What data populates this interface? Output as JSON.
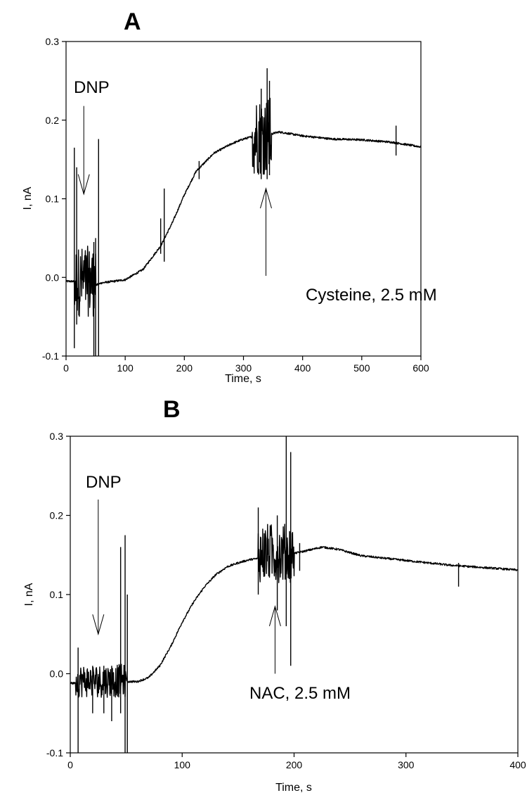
{
  "chart_data": [
    {
      "type": "line",
      "panel": "A",
      "xlabel": "Time, s",
      "ylabel": "I, nA",
      "xlim": [
        0,
        600
      ],
      "ylim": [
        -0.1,
        0.3
      ],
      "xticks": [
        0,
        100,
        200,
        300,
        400,
        500,
        600
      ],
      "yticks": [
        -0.1,
        0.0,
        0.1,
        0.2,
        0.3
      ],
      "grid": false,
      "series": [
        {
          "x": [
            0,
            14,
            50,
            60,
            100,
            130,
            160,
            180,
            200,
            220,
            250,
            280,
            300,
            320,
            345,
            360,
            400,
            450,
            500,
            550,
            600
          ],
          "y": [
            -0.005,
            -0.005,
            -0.01,
            -0.007,
            -0.003,
            0.01,
            0.04,
            0.07,
            0.105,
            0.135,
            0.158,
            0.17,
            0.176,
            0.18,
            0.182,
            0.185,
            0.18,
            0.176,
            0.175,
            0.172,
            0.166
          ]
        }
      ],
      "noise_segments": [
        {
          "x": [
            14,
            50
          ],
          "low": -0.05,
          "high": 0.04
        },
        {
          "x": [
            315,
            347
          ],
          "low": 0.13,
          "high": 0.23
        }
      ],
      "spikes": [
        {
          "x": 14,
          "low": -0.09,
          "high": 0.165
        },
        {
          "x": 18,
          "low": -0.06,
          "high": 0.14
        },
        {
          "x": 47,
          "low": -0.1,
          "high": 0.045
        },
        {
          "x": 50,
          "low": -0.1,
          "high": 0.05
        },
        {
          "x": 55,
          "low": -0.1,
          "high": 0.176
        },
        {
          "x": 160,
          "low": 0.03,
          "high": 0.075
        },
        {
          "x": 166,
          "low": 0.02,
          "high": 0.113
        },
        {
          "x": 225,
          "low": 0.125,
          "high": 0.148
        },
        {
          "x": 330,
          "low": 0.125,
          "high": 0.24
        },
        {
          "x": 340,
          "low": 0.125,
          "high": 0.266
        },
        {
          "x": 344,
          "low": 0.13,
          "high": 0.25
        },
        {
          "x": 558,
          "low": 0.155,
          "high": 0.193
        }
      ],
      "annotations": [
        {
          "text": "DNP",
          "x": 12,
          "y": 0.235,
          "arrow_from": [
            30,
            0.218
          ],
          "arrow_to": [
            30,
            0.106
          ]
        },
        {
          "text": "Cysteine, 2.5 mM",
          "x": 315,
          "y": -0.022,
          "arrow_from": [
            338,
            0.002
          ],
          "arrow_to": [
            338,
            0.113
          ]
        }
      ]
    },
    {
      "type": "line",
      "panel": "B",
      "xlabel": "Time, s",
      "ylabel": "I, nA",
      "xlim": [
        0,
        400
      ],
      "ylim": [
        -0.1,
        0.3
      ],
      "xticks": [
        0,
        100,
        200,
        300,
        400
      ],
      "yticks": [
        -0.1,
        0.0,
        0.1,
        0.2,
        0.3
      ],
      "grid": false,
      "series": [
        {
          "x": [
            0,
            5,
            50,
            60,
            70,
            80,
            90,
            100,
            110,
            120,
            130,
            140,
            150,
            160,
            170,
            180,
            200,
            210,
            225,
            240,
            260,
            280,
            300,
            320,
            340,
            360,
            380,
            400
          ],
          "y": [
            -0.012,
            -0.012,
            -0.01,
            -0.01,
            -0.005,
            0.01,
            0.035,
            0.065,
            0.09,
            0.11,
            0.125,
            0.135,
            0.14,
            0.144,
            0.146,
            0.148,
            0.152,
            0.155,
            0.16,
            0.157,
            0.149,
            0.146,
            0.143,
            0.14,
            0.137,
            0.135,
            0.133,
            0.131
          ]
        }
      ],
      "noise_segments": [
        {
          "x": [
            5,
            50
          ],
          "low": -0.03,
          "high": 0.012
        },
        {
          "x": [
            168,
            200
          ],
          "low": 0.115,
          "high": 0.19
        }
      ],
      "spikes": [
        {
          "x": 7,
          "low": -0.1,
          "high": 0.033
        },
        {
          "x": 20,
          "low": -0.05,
          "high": 0.01
        },
        {
          "x": 30,
          "low": -0.05,
          "high": 0.01
        },
        {
          "x": 37,
          "low": -0.06,
          "high": 0.01
        },
        {
          "x": 45,
          "low": -0.05,
          "high": 0.16
        },
        {
          "x": 49,
          "low": -0.1,
          "high": 0.175
        },
        {
          "x": 51,
          "low": -0.1,
          "high": 0.1
        },
        {
          "x": 168,
          "low": 0.1,
          "high": 0.21
        },
        {
          "x": 185,
          "low": 0.08,
          "high": 0.2
        },
        {
          "x": 193,
          "low": 0.06,
          "high": 0.3
        },
        {
          "x": 197,
          "low": 0.01,
          "high": 0.28
        },
        {
          "x": 205,
          "low": 0.13,
          "high": 0.165
        },
        {
          "x": 347,
          "low": 0.11,
          "high": 0.14
        }
      ],
      "annotations": [
        {
          "text": "DNP",
          "x": 0,
          "y": 0.236,
          "arrow_from": [
            25,
            0.22
          ],
          "arrow_to": [
            25,
            0.05
          ]
        },
        {
          "text": "NAC, 2.5 mM",
          "x": 0,
          "y": -0.02,
          "arrow_from": [
            183,
            0.0
          ],
          "arrow_to": [
            183,
            0.085
          ]
        }
      ]
    }
  ]
}
